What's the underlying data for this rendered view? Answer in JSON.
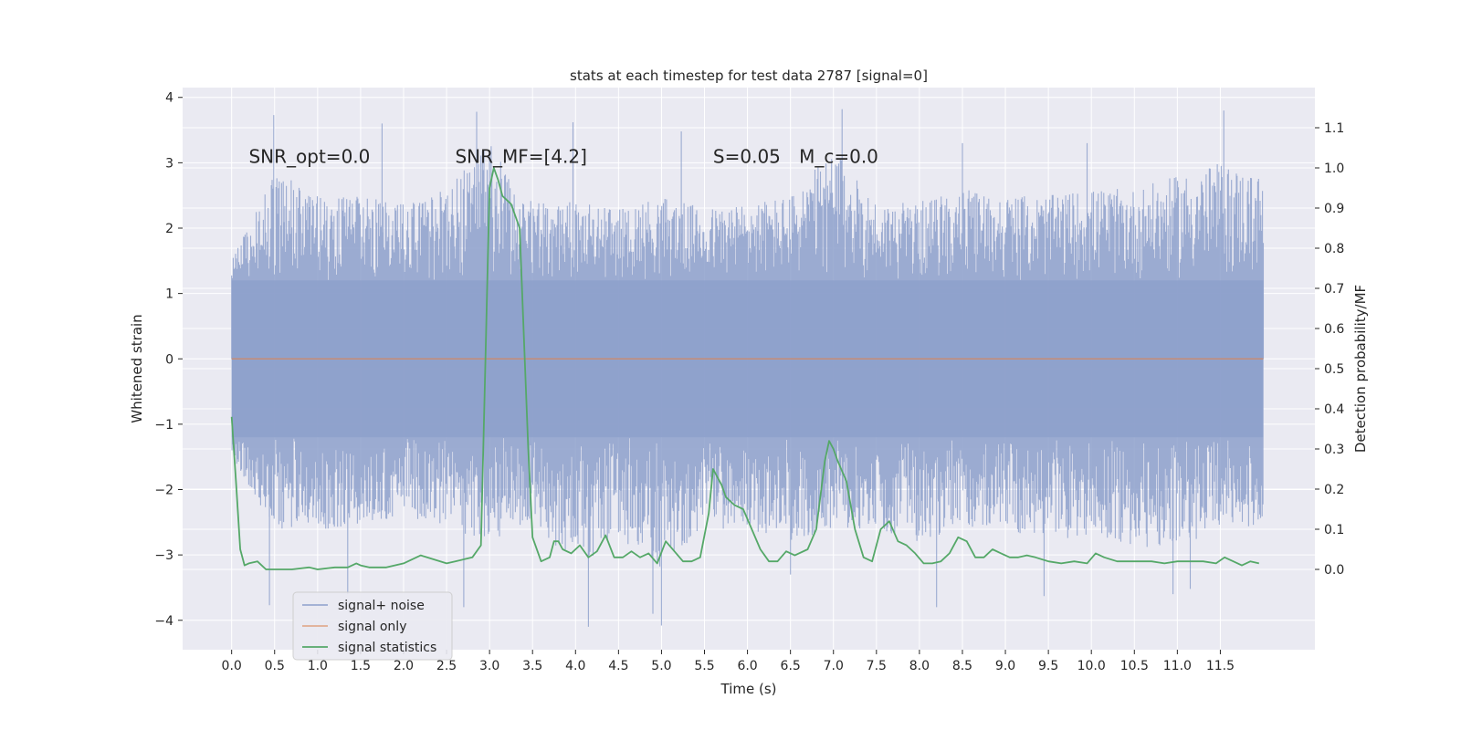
{
  "colors": {
    "background": "#eaeaf2",
    "grid": "#ffffff",
    "noise": "#8da0cb",
    "signal_only": "#dd8452",
    "statistics": "#55a868",
    "text": "#262626"
  },
  "chart_data": {
    "type": "line",
    "title": "stats at each timestep for test data 2787 [signal=0]",
    "xlabel": "Time (s)",
    "ylabel": "Whitened strain",
    "ylabel_right": "Detection probability/MF",
    "xlim": [
      -0.57,
      12.6
    ],
    "ylim": [
      -4.45,
      4.15
    ],
    "ylim_right": [
      -0.2,
      1.2
    ],
    "xticks": [
      0.0,
      0.5,
      1.0,
      1.5,
      2.0,
      2.5,
      3.0,
      3.5,
      4.0,
      4.5,
      5.0,
      5.5,
      6.0,
      6.5,
      7.0,
      7.5,
      8.0,
      8.5,
      9.0,
      9.5,
      10.0,
      10.5,
      11.0,
      11.5
    ],
    "xtick_labels": [
      "0.0",
      "0.5",
      "1.0",
      "1.5",
      "2.0",
      "2.5",
      "3.0",
      "3.5",
      "4.0",
      "4.5",
      "5.0",
      "5.5",
      "6.0",
      "6.5",
      "7.0",
      "7.5",
      "8.0",
      "8.5",
      "9.0",
      "9.5",
      "10.0",
      "10.5",
      "11.0",
      "11.5"
    ],
    "yticks": [
      -4,
      -3,
      -2,
      -1,
      0,
      1,
      2,
      3,
      4
    ],
    "ytick_labels": [
      "−4",
      "−3",
      "−2",
      "−1",
      "0",
      "1",
      "2",
      "3",
      "4"
    ],
    "yticks_right": [
      0.0,
      0.1,
      0.2,
      0.3,
      0.4,
      0.5,
      0.6,
      0.7,
      0.8,
      0.9,
      1.0,
      1.1
    ],
    "ytick_right_labels": [
      "0.0",
      "0.1",
      "0.2",
      "0.3",
      "0.4",
      "0.5",
      "0.6",
      "0.7",
      "0.8",
      "0.9",
      "1.0",
      "1.1"
    ],
    "annotations": [
      {
        "id": "snr-opt",
        "text": "SNR_opt=0.0",
        "x": 0.2,
        "y": 3.0
      },
      {
        "id": "snr-mf",
        "text": "SNR_MF=[4.2]",
        "x": 2.6,
        "y": 3.0
      },
      {
        "id": "s-value",
        "text": "S=0.05",
        "x": 5.6,
        "y": 3.0
      },
      {
        "id": "mc-value",
        "text": "M_c=0.0",
        "x": 6.6,
        "y": 3.0
      }
    ],
    "legend": {
      "location": "lower-left",
      "entries": [
        "signal+ noise",
        "signal only",
        "signal statistics"
      ]
    },
    "series": [
      {
        "name": "signal+ noise",
        "kind": "noise",
        "x_range": [
          0.0,
          12.0
        ],
        "core_amplitude": 1.2,
        "upper_envelope": [
          [
            0,
            1.5
          ],
          [
            0.5,
            2.9
          ],
          [
            1.0,
            2.5
          ],
          [
            1.5,
            2.5
          ],
          [
            2.0,
            2.4
          ],
          [
            2.5,
            2.6
          ],
          [
            3.0,
            3.3
          ],
          [
            3.5,
            2.4
          ],
          [
            4.0,
            2.4
          ],
          [
            4.5,
            2.3
          ],
          [
            5.0,
            2.5
          ],
          [
            5.5,
            2.3
          ],
          [
            6.0,
            2.4
          ],
          [
            6.5,
            2.5
          ],
          [
            7.0,
            3.2
          ],
          [
            7.5,
            2.4
          ],
          [
            8.0,
            2.4
          ],
          [
            8.5,
            2.6
          ],
          [
            9.0,
            2.5
          ],
          [
            9.5,
            2.5
          ],
          [
            10.0,
            2.6
          ],
          [
            10.5,
            2.6
          ],
          [
            11.0,
            2.8
          ],
          [
            11.5,
            3.0
          ],
          [
            12.0,
            2.8
          ]
        ],
        "lower_envelope": [
          [
            0,
            -1.5
          ],
          [
            0.5,
            -2.6
          ],
          [
            1.0,
            -2.6
          ],
          [
            1.5,
            -2.6
          ],
          [
            2.0,
            -2.4
          ],
          [
            2.5,
            -2.6
          ],
          [
            3.0,
            -2.8
          ],
          [
            3.5,
            -2.5
          ],
          [
            4.0,
            -3.2
          ],
          [
            4.5,
            -2.8
          ],
          [
            5.0,
            -3.2
          ],
          [
            5.5,
            -2.6
          ],
          [
            6.0,
            -2.6
          ],
          [
            6.5,
            -2.8
          ],
          [
            7.0,
            -2.6
          ],
          [
            7.5,
            -2.6
          ],
          [
            8.0,
            -2.8
          ],
          [
            8.5,
            -2.6
          ],
          [
            9.0,
            -2.6
          ],
          [
            9.5,
            -2.8
          ],
          [
            10.0,
            -2.7
          ],
          [
            10.5,
            -2.9
          ],
          [
            11.0,
            -2.9
          ],
          [
            11.5,
            -2.6
          ],
          [
            12.0,
            -2.6
          ]
        ],
        "peaks": [
          [
            0.49,
            3.73
          ],
          [
            1.75,
            3.6
          ],
          [
            2.85,
            3.78
          ],
          [
            3.97,
            3.62
          ],
          [
            5.23,
            3.48
          ],
          [
            7.1,
            3.82
          ],
          [
            8.5,
            3.3
          ],
          [
            9.95,
            3.3
          ],
          [
            11.54,
            3.8
          ],
          [
            0.44,
            -3.77
          ],
          [
            1.35,
            -3.6
          ],
          [
            2.7,
            -3.8
          ],
          [
            4.15,
            -4.1
          ],
          [
            4.9,
            -3.9
          ],
          [
            5.0,
            -4.08
          ],
          [
            6.5,
            -3.3
          ],
          [
            8.2,
            -3.8
          ],
          [
            9.45,
            -3.63
          ],
          [
            10.95,
            -3.6
          ],
          [
            11.15,
            -3.52
          ]
        ]
      },
      {
        "name": "signal only",
        "kind": "line",
        "x": [
          0.0,
          12.0
        ],
        "y": [
          0.0,
          0.0
        ]
      },
      {
        "name": "signal statistics",
        "kind": "line",
        "axis": "right",
        "x": [
          0.0,
          0.05,
          0.1,
          0.15,
          0.2,
          0.3,
          0.4,
          0.5,
          0.7,
          0.9,
          1.0,
          1.2,
          1.35,
          1.45,
          1.5,
          1.6,
          1.7,
          1.8,
          2.0,
          2.2,
          2.35,
          2.5,
          2.6,
          2.8,
          2.9,
          2.95,
          3.0,
          3.05,
          3.1,
          3.15,
          3.25,
          3.35,
          3.45,
          3.5,
          3.6,
          3.7,
          3.75,
          3.8,
          3.85,
          3.95,
          4.05,
          4.15,
          4.25,
          4.35,
          4.45,
          4.55,
          4.65,
          4.75,
          4.85,
          4.95,
          5.05,
          5.15,
          5.25,
          5.35,
          5.45,
          5.55,
          5.6,
          5.65,
          5.7,
          5.75,
          5.85,
          5.95,
          6.05,
          6.15,
          6.25,
          6.35,
          6.45,
          6.55,
          6.7,
          6.8,
          6.9,
          6.95,
          7.0,
          7.05,
          7.15,
          7.25,
          7.35,
          7.45,
          7.55,
          7.65,
          7.75,
          7.85,
          7.95,
          8.05,
          8.15,
          8.25,
          8.35,
          8.45,
          8.55,
          8.65,
          8.75,
          8.85,
          8.95,
          9.05,
          9.15,
          9.25,
          9.35,
          9.5,
          9.65,
          9.8,
          9.95,
          10.05,
          10.15,
          10.3,
          10.5,
          10.7,
          10.85,
          11.0,
          11.15,
          11.3,
          11.45,
          11.55,
          11.65,
          11.75,
          11.85,
          11.95
        ],
        "y": [
          0.38,
          0.22,
          0.05,
          0.01,
          0.015,
          0.02,
          0.0,
          0.0,
          0.0,
          0.005,
          0.0,
          0.005,
          0.005,
          0.015,
          0.01,
          0.005,
          0.005,
          0.005,
          0.015,
          0.035,
          0.025,
          0.015,
          0.02,
          0.03,
          0.06,
          0.5,
          0.95,
          1.0,
          0.97,
          0.93,
          0.91,
          0.85,
          0.3,
          0.08,
          0.02,
          0.03,
          0.07,
          0.07,
          0.05,
          0.04,
          0.06,
          0.03,
          0.045,
          0.085,
          0.03,
          0.03,
          0.045,
          0.03,
          0.04,
          0.015,
          0.07,
          0.045,
          0.02,
          0.02,
          0.03,
          0.14,
          0.25,
          0.23,
          0.21,
          0.18,
          0.16,
          0.15,
          0.1,
          0.05,
          0.02,
          0.02,
          0.045,
          0.035,
          0.05,
          0.1,
          0.27,
          0.32,
          0.3,
          0.27,
          0.22,
          0.1,
          0.03,
          0.02,
          0.1,
          0.12,
          0.07,
          0.06,
          0.04,
          0.015,
          0.015,
          0.02,
          0.04,
          0.08,
          0.07,
          0.03,
          0.03,
          0.05,
          0.04,
          0.03,
          0.03,
          0.035,
          0.03,
          0.02,
          0.015,
          0.02,
          0.015,
          0.04,
          0.03,
          0.02,
          0.02,
          0.02,
          0.015,
          0.02,
          0.02,
          0.02,
          0.015,
          0.03,
          0.02,
          0.01,
          0.02,
          0.015
        ]
      }
    ]
  }
}
